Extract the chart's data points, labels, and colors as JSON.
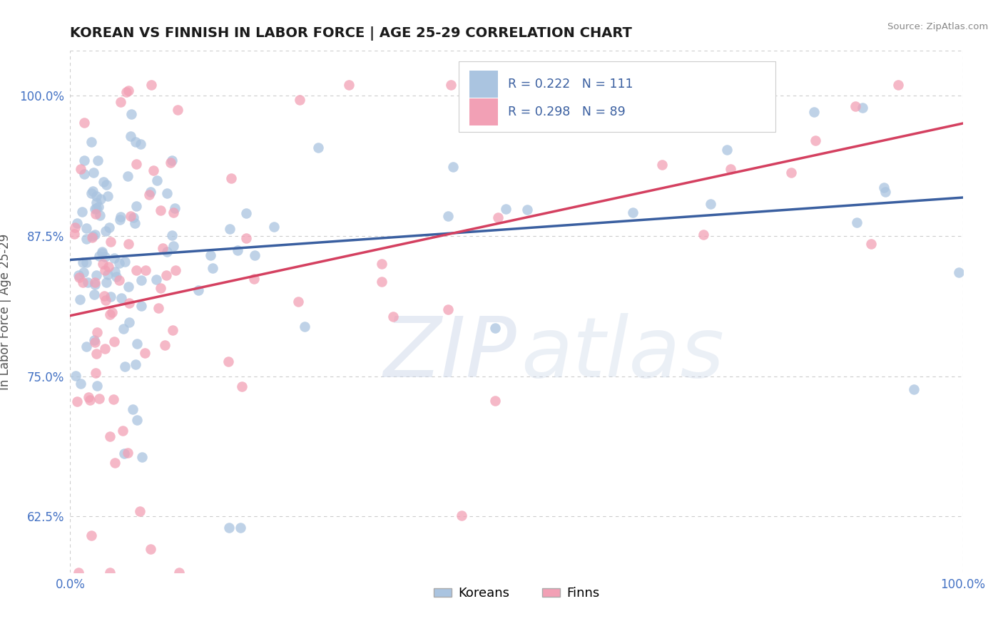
{
  "title": "KOREAN VS FINNISH IN LABOR FORCE | AGE 25-29 CORRELATION CHART",
  "source_text": "Source: ZipAtlas.com",
  "ylabel": "In Labor Force | Age 25-29",
  "xlim": [
    0.0,
    1.0
  ],
  "ylim": [
    0.575,
    1.04
  ],
  "yticks": [
    0.625,
    0.75,
    0.875,
    1.0
  ],
  "ytick_labels": [
    "62.5%",
    "75.0%",
    "87.5%",
    "100.0%"
  ],
  "xticks": [
    0.0,
    1.0
  ],
  "xtick_labels": [
    "0.0%",
    "100.0%"
  ],
  "korean_R": 0.222,
  "korean_N": 111,
  "finnish_R": 0.298,
  "finnish_N": 89,
  "korean_color": "#aac4e0",
  "finnish_color": "#f2a0b5",
  "korean_line_color": "#3a5fa0",
  "finnish_line_color": "#d44060",
  "legend_label_korean": "Koreans",
  "legend_label_finnish": "Finns",
  "background_color": "#ffffff",
  "watermark_color": "#c8d4e8",
  "tick_color": "#4472c4",
  "grid_color": "#cccccc"
}
